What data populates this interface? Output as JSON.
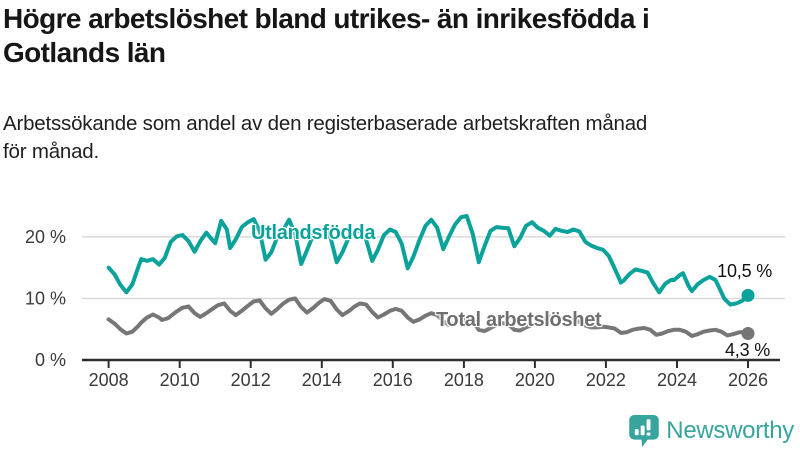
{
  "header": {
    "title_lines": [
      "Högre arbetslöshet bland utrikes- än inrikesfödda i",
      "Gotlands län"
    ],
    "subtitle_lines": [
      "Arbetssökande som andel av den registerbaserade arbetskraften månad",
      "för månad."
    ]
  },
  "chart_data": {
    "type": "line",
    "title": "Högre arbetslöshet bland utrikes- än inrikesfödda i Gotlands län",
    "xlabel": "",
    "ylabel": "Arbetssökande som andel av den registerbaserade arbetskraften",
    "x_unit": "year_decimal",
    "xlim": [
      2007.25,
      2026.9
    ],
    "ylim": [
      0,
      26
    ],
    "x_ticks": [
      2008,
      2010,
      2012,
      2014,
      2016,
      2018,
      2020,
      2022,
      2024,
      2026
    ],
    "y_ticks": [
      {
        "value": 0,
        "label": "0 %"
      },
      {
        "value": 10,
        "label": "10 %"
      },
      {
        "value": 20,
        "label": "20 %"
      }
    ],
    "grid_y": [
      10,
      20
    ],
    "legend_position": "inline-labels",
    "series": [
      {
        "name": "Utlandsfödda",
        "color": "#0ba29b",
        "end_label": "10,5 %",
        "end_value": 10.5,
        "points": [
          [
            2008.0,
            15.0
          ],
          [
            2008.17,
            13.9
          ],
          [
            2008.33,
            12.2
          ],
          [
            2008.5,
            11.0
          ],
          [
            2008.67,
            12.3
          ],
          [
            2008.83,
            15.0
          ],
          [
            2008.92,
            16.4
          ],
          [
            2009.08,
            16.1
          ],
          [
            2009.25,
            16.4
          ],
          [
            2009.42,
            15.5
          ],
          [
            2009.58,
            16.6
          ],
          [
            2009.75,
            19.2
          ],
          [
            2009.92,
            20.1
          ],
          [
            2010.08,
            20.3
          ],
          [
            2010.25,
            19.3
          ],
          [
            2010.42,
            17.6
          ],
          [
            2010.58,
            19.3
          ],
          [
            2010.75,
            20.7
          ],
          [
            2010.92,
            19.5
          ],
          [
            2011.0,
            19.0
          ],
          [
            2011.17,
            22.6
          ],
          [
            2011.33,
            21.2
          ],
          [
            2011.42,
            18.2
          ],
          [
            2011.58,
            19.6
          ],
          [
            2011.75,
            21.6
          ],
          [
            2011.92,
            22.4
          ],
          [
            2012.08,
            22.9
          ],
          [
            2012.25,
            21.0
          ],
          [
            2012.42,
            16.3
          ],
          [
            2012.58,
            17.5
          ],
          [
            2012.75,
            20.0
          ],
          [
            2012.92,
            21.2
          ],
          [
            2013.08,
            22.8
          ],
          [
            2013.25,
            20.5
          ],
          [
            2013.42,
            15.6
          ],
          [
            2013.58,
            17.8
          ],
          [
            2013.75,
            20.2
          ],
          [
            2013.92,
            21.0
          ],
          [
            2014.08,
            21.3
          ],
          [
            2014.25,
            19.8
          ],
          [
            2014.42,
            15.9
          ],
          [
            2014.58,
            17.5
          ],
          [
            2014.75,
            19.8
          ],
          [
            2014.92,
            20.8
          ],
          [
            2015.08,
            21.0
          ],
          [
            2015.25,
            19.5
          ],
          [
            2015.42,
            16.1
          ],
          [
            2015.58,
            17.9
          ],
          [
            2015.75,
            20.3
          ],
          [
            2015.92,
            21.2
          ],
          [
            2016.08,
            20.8
          ],
          [
            2016.25,
            18.9
          ],
          [
            2016.42,
            14.9
          ],
          [
            2016.58,
            16.8
          ],
          [
            2016.75,
            19.5
          ],
          [
            2016.92,
            21.8
          ],
          [
            2017.08,
            22.8
          ],
          [
            2017.25,
            21.5
          ],
          [
            2017.42,
            18.0
          ],
          [
            2017.58,
            20.0
          ],
          [
            2017.75,
            22.0
          ],
          [
            2017.92,
            23.2
          ],
          [
            2018.08,
            23.4
          ],
          [
            2018.25,
            20.5
          ],
          [
            2018.42,
            15.9
          ],
          [
            2018.58,
            18.5
          ],
          [
            2018.75,
            21.0
          ],
          [
            2018.92,
            21.6
          ],
          [
            2019.08,
            21.5
          ],
          [
            2019.25,
            21.4
          ],
          [
            2019.42,
            18.5
          ],
          [
            2019.58,
            19.8
          ],
          [
            2019.75,
            21.8
          ],
          [
            2019.92,
            22.4
          ],
          [
            2020.08,
            21.5
          ],
          [
            2020.25,
            21.0
          ],
          [
            2020.42,
            20.2
          ],
          [
            2020.58,
            21.3
          ],
          [
            2020.75,
            21.0
          ],
          [
            2020.92,
            20.8
          ],
          [
            2021.08,
            21.2
          ],
          [
            2021.25,
            20.9
          ],
          [
            2021.42,
            19.2
          ],
          [
            2021.58,
            18.6
          ],
          [
            2021.75,
            18.2
          ],
          [
            2021.92,
            17.9
          ],
          [
            2022.08,
            16.9
          ],
          [
            2022.25,
            14.8
          ],
          [
            2022.42,
            12.6
          ],
          [
            2022.5,
            12.9
          ],
          [
            2022.67,
            14.0
          ],
          [
            2022.83,
            14.7
          ],
          [
            2022.92,
            14.6
          ],
          [
            2023.0,
            14.5
          ],
          [
            2023.17,
            14.2
          ],
          [
            2023.33,
            12.5
          ],
          [
            2023.5,
            11.0
          ],
          [
            2023.67,
            12.4
          ],
          [
            2023.83,
            13.0
          ],
          [
            2023.92,
            13.0
          ],
          [
            2024.08,
            13.8
          ],
          [
            2024.17,
            14.1
          ],
          [
            2024.33,
            12.0
          ],
          [
            2024.42,
            11.2
          ],
          [
            2024.58,
            12.3
          ],
          [
            2024.75,
            13.0
          ],
          [
            2024.92,
            13.5
          ],
          [
            2025.08,
            13.0
          ],
          [
            2025.17,
            12.0
          ],
          [
            2025.33,
            10.0
          ],
          [
            2025.5,
            9.0
          ],
          [
            2025.67,
            9.2
          ],
          [
            2025.83,
            9.6
          ],
          [
            2025.92,
            10.0
          ],
          [
            2026.0,
            10.5
          ]
        ]
      },
      {
        "name": "Total arbetslöshet",
        "color": "#767676",
        "end_label": "4,3 %",
        "end_value": 4.3,
        "points": [
          [
            2008.0,
            6.6
          ],
          [
            2008.17,
            5.9
          ],
          [
            2008.33,
            5.0
          ],
          [
            2008.5,
            4.3
          ],
          [
            2008.67,
            4.6
          ],
          [
            2008.83,
            5.5
          ],
          [
            2008.92,
            6.1
          ],
          [
            2009.08,
            6.9
          ],
          [
            2009.25,
            7.4
          ],
          [
            2009.42,
            6.9
          ],
          [
            2009.5,
            6.5
          ],
          [
            2009.67,
            6.8
          ],
          [
            2009.83,
            7.5
          ],
          [
            2009.92,
            7.9
          ],
          [
            2010.08,
            8.5
          ],
          [
            2010.25,
            8.7
          ],
          [
            2010.42,
            7.6
          ],
          [
            2010.58,
            7.0
          ],
          [
            2010.75,
            7.6
          ],
          [
            2010.92,
            8.3
          ],
          [
            2011.08,
            8.9
          ],
          [
            2011.25,
            9.2
          ],
          [
            2011.42,
            8.0
          ],
          [
            2011.58,
            7.3
          ],
          [
            2011.75,
            8.0
          ],
          [
            2011.92,
            8.8
          ],
          [
            2012.08,
            9.5
          ],
          [
            2012.25,
            9.7
          ],
          [
            2012.42,
            8.4
          ],
          [
            2012.58,
            7.5
          ],
          [
            2012.75,
            8.3
          ],
          [
            2012.92,
            9.2
          ],
          [
            2013.08,
            9.8
          ],
          [
            2013.25,
            10.0
          ],
          [
            2013.42,
            8.6
          ],
          [
            2013.58,
            7.7
          ],
          [
            2013.75,
            8.4
          ],
          [
            2013.92,
            9.3
          ],
          [
            2014.08,
            9.9
          ],
          [
            2014.25,
            9.6
          ],
          [
            2014.42,
            8.2
          ],
          [
            2014.58,
            7.3
          ],
          [
            2014.75,
            7.9
          ],
          [
            2014.92,
            8.7
          ],
          [
            2015.08,
            9.2
          ],
          [
            2015.25,
            9.0
          ],
          [
            2015.42,
            7.8
          ],
          [
            2015.58,
            6.9
          ],
          [
            2015.75,
            7.4
          ],
          [
            2015.92,
            8.0
          ],
          [
            2016.08,
            8.3
          ],
          [
            2016.25,
            8.0
          ],
          [
            2016.42,
            6.9
          ],
          [
            2016.58,
            6.2
          ],
          [
            2016.75,
            6.6
          ],
          [
            2016.92,
            7.2
          ],
          [
            2017.08,
            7.6
          ],
          [
            2017.25,
            7.3
          ],
          [
            2017.42,
            6.3
          ],
          [
            2017.58,
            5.7
          ],
          [
            2017.75,
            6.0
          ],
          [
            2017.92,
            6.5
          ],
          [
            2018.08,
            6.7
          ],
          [
            2018.25,
            6.3
          ],
          [
            2018.42,
            4.9
          ],
          [
            2018.58,
            4.7
          ],
          [
            2018.75,
            5.2
          ],
          [
            2018.92,
            5.7
          ],
          [
            2019.08,
            6.0
          ],
          [
            2019.25,
            5.8
          ],
          [
            2019.42,
            4.9
          ],
          [
            2019.58,
            4.8
          ],
          [
            2019.75,
            5.3
          ],
          [
            2019.92,
            5.7
          ],
          [
            2020.08,
            5.9
          ],
          [
            2020.25,
            6.5
          ],
          [
            2020.42,
            7.0
          ],
          [
            2020.58,
            7.1
          ],
          [
            2020.75,
            6.8
          ],
          [
            2020.92,
            6.6
          ],
          [
            2021.08,
            6.5
          ],
          [
            2021.25,
            6.2
          ],
          [
            2021.42,
            5.6
          ],
          [
            2021.58,
            5.3
          ],
          [
            2021.75,
            5.3
          ],
          [
            2021.92,
            5.4
          ],
          [
            2022.08,
            5.3
          ],
          [
            2022.25,
            5.1
          ],
          [
            2022.42,
            4.4
          ],
          [
            2022.58,
            4.5
          ],
          [
            2022.75,
            4.9
          ],
          [
            2022.92,
            5.1
          ],
          [
            2023.08,
            5.2
          ],
          [
            2023.25,
            4.9
          ],
          [
            2023.42,
            4.1
          ],
          [
            2023.58,
            4.3
          ],
          [
            2023.75,
            4.7
          ],
          [
            2023.92,
            4.9
          ],
          [
            2024.08,
            4.9
          ],
          [
            2024.25,
            4.6
          ],
          [
            2024.42,
            3.9
          ],
          [
            2024.58,
            4.2
          ],
          [
            2024.75,
            4.6
          ],
          [
            2024.92,
            4.8
          ],
          [
            2025.08,
            4.9
          ],
          [
            2025.25,
            4.6
          ],
          [
            2025.42,
            4.0
          ],
          [
            2025.58,
            4.2
          ],
          [
            2025.75,
            4.5
          ],
          [
            2025.92,
            4.5
          ],
          [
            2026.0,
            4.3
          ]
        ]
      }
    ]
  },
  "logo": {
    "text": "Newsworthy",
    "color": "#38a49e",
    "icon": "bar-chart-speech-bubble-icon"
  },
  "colors": {
    "accent": "#0ba29b",
    "series_gray": "#767676",
    "grid": "#d9d9d9",
    "axis": "#2e2e2e",
    "axis_text": "#3a3a3a"
  }
}
